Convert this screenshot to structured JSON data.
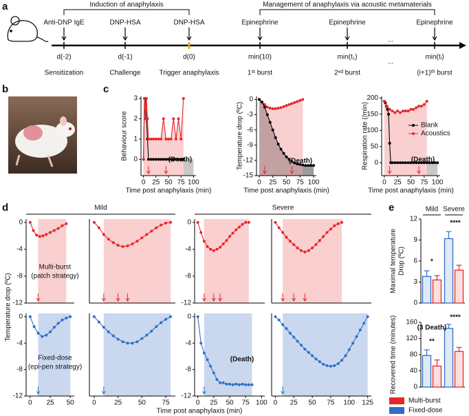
{
  "panel_labels": [
    "a",
    "b",
    "c",
    "d",
    "e"
  ],
  "timeline": {
    "phases": [
      "Induction of anaphylaxis",
      "Management of anaphylaxis via acoustic metamaterials"
    ],
    "events": [
      {
        "agent": "Anti-DNP IgE",
        "time": "d(-2)",
        "label": "Sensitization"
      },
      {
        "agent": "DNP-HSA",
        "time": "d(-1)",
        "label": "Challenge"
      },
      {
        "agent": "DNP-HSA",
        "time": "d(0)",
        "label": "Trigger anaphylaxis"
      },
      {
        "agent": "Epinephrine",
        "time": "min(10)",
        "label": "1ˢᵗ burst"
      },
      {
        "agent": "Epinephrine",
        "time": "min(t₁)",
        "label": "2ⁿᵈ burst"
      },
      {
        "agent": "Epinephrine",
        "time": "min(tᵢ)",
        "label": "(i+1)ᵗʰ burst"
      }
    ],
    "ellipsis": "..."
  },
  "figure_d": {
    "groups": [
      "Mild",
      "Severe"
    ],
    "ylabel": "Temperature drop (ºC)",
    "xlabel": "Time post anaphylaxis (min)",
    "strategies": [
      [
        "Multi-burst",
        "(patch strategy)"
      ],
      [
        "Fixed-dose",
        "(epi-pen strategy)"
      ]
    ],
    "strategy_colors": [
      "#e8262a",
      "#2f6fc4"
    ]
  },
  "chart_data": [
    {
      "type": "line",
      "ylabel": "Behaviour score",
      "xlabel": "Time post anaphylaxis (min)",
      "xlim": [
        -5,
        105
      ],
      "ylim": [
        -0.8,
        3.1
      ],
      "xticks": [
        0,
        25,
        50,
        75,
        100
      ],
      "yticks": [
        0,
        1,
        2,
        3
      ],
      "shades": [
        {
          "x": [
            80,
            100
          ],
          "y": [
            -0.8,
            0
          ],
          "color": "#c8c8c8"
        }
      ],
      "series": [
        {
          "color": "#000000",
          "x": [
            0,
            2,
            4,
            6,
            8,
            10,
            15,
            20,
            25,
            30,
            35,
            40,
            45,
            50,
            55,
            60,
            65,
            70,
            75,
            80
          ],
          "values": [
            0,
            3,
            3,
            2,
            1,
            0,
            0,
            0,
            0,
            0,
            0,
            0,
            0,
            0,
            0,
            0,
            0,
            0,
            0,
            0
          ]
        },
        {
          "color": "#e8262a",
          "area": true,
          "x": [
            0,
            2,
            4,
            6,
            8,
            10,
            15,
            20,
            25,
            30,
            35,
            40,
            45,
            50,
            55,
            60,
            65,
            70,
            75,
            80
          ],
          "values": [
            0,
            3,
            2,
            3,
            2,
            1,
            1,
            1,
            1,
            1,
            1,
            2,
            1,
            1,
            1,
            2,
            1,
            2,
            1,
            3
          ]
        }
      ],
      "arrows": [
        10,
        45
      ],
      "arrow_color": "#e8262a",
      "annotations": [
        "(Death)"
      ]
    },
    {
      "type": "line",
      "ylabel": "Temperature drop (ºC)",
      "xlabel": "Time post anaphylaxis (min)",
      "xlim": [
        -5,
        105
      ],
      "ylim": [
        -15,
        0.6
      ],
      "xticks": [
        0,
        25,
        50,
        75,
        100
      ],
      "yticks": [
        0,
        -3,
        -6,
        -9,
        -12,
        -15
      ],
      "shades": [
        {
          "x": [
            80,
            100
          ],
          "y": [
            -15,
            -13
          ],
          "color": "#c8c8c8"
        }
      ],
      "series": [
        {
          "color": "#e8262a",
          "area": true,
          "x": [
            0,
            5,
            10,
            15,
            20,
            25,
            30,
            35,
            40,
            45,
            50,
            55,
            60,
            65,
            70,
            75,
            80
          ],
          "values": [
            0,
            -0.5,
            -1,
            -1.5,
            -1.7,
            -1.8,
            -1.8,
            -1.7,
            -1.6,
            -1.4,
            -1.2,
            -1,
            -0.8,
            -0.6,
            -0.4,
            -0.2,
            0
          ]
        },
        {
          "color": "#000000",
          "area": true,
          "x": [
            0,
            5,
            10,
            15,
            20,
            25,
            30,
            35,
            40,
            45,
            50,
            55,
            60,
            65,
            70,
            75,
            80,
            85,
            90,
            95,
            100
          ],
          "values": [
            0,
            -0.5,
            -1.5,
            -3,
            -4.5,
            -6,
            -7.5,
            -8.8,
            -9.8,
            -10.6,
            -11.3,
            -11.8,
            -12.2,
            -12.5,
            -12.7,
            -12.8,
            -12.9,
            -13,
            -13,
            -13,
            -13
          ]
        }
      ],
      "arrows": [
        10,
        60
      ],
      "arrow_color": "#e8262a",
      "annotations": [
        "(Death)"
      ]
    },
    {
      "type": "line",
      "ylabel": "Respiration rate (/min)",
      "xlabel": "Time post anaphylaxis (min)",
      "xlim": [
        -5,
        105
      ],
      "ylim": [
        -40,
        205
      ],
      "xticks": [
        0,
        25,
        50,
        75,
        100
      ],
      "yticks": [
        0,
        50,
        100,
        150,
        200
      ],
      "shades": [
        {
          "x": [
            80,
            100
          ],
          "y": [
            -40,
            0
          ],
          "color": "#c8c8c8"
        }
      ],
      "series": [
        {
          "name": "Blank",
          "color": "#000000",
          "x": [
            0,
            2,
            4,
            6,
            8,
            10,
            12,
            15,
            20,
            25,
            30,
            35,
            40,
            45,
            50,
            55,
            60,
            65,
            70,
            75,
            80,
            85,
            90,
            95,
            100
          ],
          "values": [
            190,
            185,
            175,
            165,
            150,
            60,
            0,
            0,
            0,
            0,
            0,
            0,
            0,
            0,
            0,
            0,
            0,
            0,
            0,
            0,
            0,
            0,
            0,
            0,
            0
          ]
        },
        {
          "name": "Acoustics",
          "color": "#e8262a",
          "area": true,
          "x": [
            0,
            5,
            10,
            15,
            20,
            25,
            30,
            35,
            40,
            45,
            50,
            55,
            60,
            65,
            70,
            75,
            80
          ],
          "values": [
            190,
            175,
            165,
            160,
            155,
            160,
            155,
            160,
            160,
            160,
            165,
            165,
            170,
            175,
            175,
            180,
            190
          ]
        }
      ],
      "legend": "upper right",
      "arrows": [
        10,
        65
      ],
      "arrow_color": "#e8262a",
      "annotations": [
        "(Death)"
      ]
    },
    {
      "type": "line",
      "xlim": [
        -5,
        55
      ],
      "ylim": [
        -12,
        0.5
      ],
      "yticks": [
        0,
        -4,
        -8,
        -12
      ],
      "shades": [
        {
          "x": [
            10,
            45
          ],
          "color": "#f9cfcf"
        }
      ],
      "series": [
        {
          "color": "#e8262a",
          "x": [
            0,
            4,
            8,
            12,
            16,
            20,
            25,
            30,
            35,
            40,
            45
          ],
          "values": [
            0,
            -1.2,
            -1.9,
            -2.1,
            -2,
            -1.8,
            -1.5,
            -1.2,
            -0.9,
            -0.5,
            -0.2
          ]
        }
      ],
      "arrows": [
        10
      ],
      "arrow_color": "#e8262a"
    },
    {
      "type": "line",
      "xlim": [
        -5,
        85
      ],
      "ylim": [
        -12,
        0.5
      ],
      "shades": [
        {
          "x": [
            10,
            80
          ],
          "color": "#f9cfcf"
        }
      ],
      "series": [
        {
          "color": "#e8262a",
          "x": [
            0,
            5,
            10,
            15,
            20,
            25,
            30,
            35,
            40,
            45,
            50,
            55,
            60,
            65,
            70,
            75,
            80
          ],
          "values": [
            0,
            -0.8,
            -1.8,
            -2.5,
            -3,
            -3.4,
            -3.6,
            -3.5,
            -3.2,
            -2.8,
            -2.3,
            -1.8,
            -1.3,
            -0.8,
            -0.4,
            -0.1,
            0
          ]
        }
      ],
      "arrows": [
        10,
        25,
        35
      ],
      "arrow_color": "#e8262a"
    },
    {
      "type": "line",
      "xlim": [
        -5,
        105
      ],
      "ylim": [
        -12,
        0.5
      ],
      "yticks": [
        0,
        -4,
        -8,
        -12
      ],
      "shades": [
        {
          "x": [
            10,
            80
          ],
          "color": "#f9cfcf"
        }
      ],
      "series": [
        {
          "color": "#e8262a",
          "x": [
            0,
            5,
            10,
            15,
            20,
            25,
            30,
            35,
            40,
            45,
            50,
            55,
            60,
            65,
            70,
            75,
            80
          ],
          "values": [
            0,
            -1.5,
            -2.8,
            -3.6,
            -4,
            -4.2,
            -4,
            -3.7,
            -3.2,
            -2.7,
            -2.1,
            -1.6,
            -1.1,
            -0.7,
            -0.3,
            0,
            0
          ]
        }
      ],
      "arrows": [
        10,
        25,
        35
      ],
      "arrow_color": "#e8262a"
    },
    {
      "type": "line",
      "xlim": [
        -5,
        130
      ],
      "ylim": [
        -12,
        0.5
      ],
      "shades": [
        {
          "x": [
            10,
            90
          ],
          "color": "#f9cfcf"
        }
      ],
      "series": [
        {
          "color": "#e8262a",
          "x": [
            0,
            5,
            10,
            15,
            20,
            25,
            30,
            35,
            40,
            45,
            50,
            55,
            60,
            65,
            70,
            75,
            80,
            85,
            90
          ],
          "values": [
            0,
            -0.8,
            -1.5,
            -2.2,
            -2.8,
            -3.3,
            -3.8,
            -4.2,
            -4.4,
            -4.2,
            -3.8,
            -3.3,
            -2.7,
            -2.1,
            -1.5,
            -1,
            -0.5,
            -0.2,
            0
          ]
        }
      ],
      "arrows": [
        10,
        25,
        40
      ],
      "arrow_color": "#e8262a"
    },
    {
      "type": "line",
      "xlim": [
        -5,
        55
      ],
      "ylim": [
        -12,
        0.5
      ],
      "xticks": [
        0,
        25,
        50
      ],
      "yticks": [
        0,
        -4,
        -8,
        -12
      ],
      "shades": [
        {
          "x": [
            10,
            50
          ],
          "color": "#c9d8ef"
        }
      ],
      "series": [
        {
          "color": "#2f6fc4",
          "x": [
            0,
            5,
            10,
            15,
            20,
            25,
            30,
            35,
            40,
            45,
            50
          ],
          "values": [
            0,
            -1.5,
            -2.5,
            -3,
            -2.8,
            -2.3,
            -1.6,
            -1,
            -0.5,
            -0.2,
            0
          ]
        }
      ],
      "arrows": [
        10
      ],
      "arrow_color": "#2f6fc4"
    },
    {
      "type": "line",
      "xlim": [
        -5,
        85
      ],
      "ylim": [
        -12,
        0.5
      ],
      "xticks": [
        0,
        25,
        50,
        75
      ],
      "shades": [
        {
          "x": [
            10,
            80
          ],
          "color": "#c9d8ef"
        }
      ],
      "series": [
        {
          "color": "#2f6fc4",
          "x": [
            0,
            5,
            10,
            15,
            20,
            25,
            30,
            35,
            40,
            45,
            50,
            55,
            60,
            65,
            70,
            75,
            80
          ],
          "values": [
            0,
            -0.8,
            -1.6,
            -2.3,
            -2.9,
            -3.4,
            -3.8,
            -4,
            -4,
            -3.8,
            -3.3,
            -2.8,
            -2.2,
            -1.5,
            -0.9,
            -0.4,
            0
          ]
        }
      ],
      "arrows": [
        10
      ],
      "arrow_color": "#2f6fc4"
    },
    {
      "type": "line",
      "xlim": [
        -5,
        105
      ],
      "ylim": [
        -12,
        0.5
      ],
      "xticks": [
        0,
        25,
        50,
        75,
        100
      ],
      "yticks": [
        0,
        -4,
        -8,
        -12
      ],
      "shades": [
        {
          "x": [
            10,
            85
          ],
          "color": "#c9d8ef"
        }
      ],
      "series": [
        {
          "color": "#2f6fc4",
          "x": [
            0,
            5,
            10,
            15,
            20,
            25,
            30,
            35,
            40,
            45,
            50,
            55,
            60,
            65,
            70,
            75,
            80,
            85
          ],
          "values": [
            0,
            -4,
            -5.5,
            -6.5,
            -7.5,
            -8.5,
            -9.5,
            -10,
            -10,
            -10.2,
            -10.2,
            -10.3,
            -10.2,
            -10.3,
            -10.2,
            -10.3,
            -10.3,
            -10.3
          ]
        }
      ],
      "arrows": [
        10
      ],
      "arrow_color": "#2f6fc4",
      "annotations": [
        "(Death)"
      ]
    },
    {
      "type": "line",
      "xlim": [
        -5,
        130
      ],
      "ylim": [
        -12,
        0.5
      ],
      "xticks": [
        0,
        25,
        50,
        75,
        100,
        125
      ],
      "shades": [
        {
          "x": [
            10,
            125
          ],
          "color": "#c9d8ef"
        }
      ],
      "series": [
        {
          "color": "#2f6fc4",
          "x": [
            0,
            5,
            10,
            15,
            20,
            25,
            30,
            35,
            40,
            45,
            50,
            55,
            60,
            65,
            70,
            75,
            80,
            85,
            90,
            95,
            100,
            105,
            110,
            115,
            120,
            125
          ],
          "values": [
            0,
            -0.5,
            -1.2,
            -1.8,
            -2.5,
            -3.1,
            -3.7,
            -4.3,
            -4.9,
            -5.4,
            -5.9,
            -6.4,
            -6.8,
            -7.2,
            -7.4,
            -7.5,
            -7.4,
            -7.1,
            -6.6,
            -5.9,
            -5,
            -4,
            -3,
            -2,
            -1,
            0
          ]
        }
      ],
      "arrows": [
        10
      ],
      "arrow_color": "#2f6fc4"
    },
    {
      "type": "bar",
      "categories": [
        "Mild",
        "Severe"
      ],
      "ylabel": [
        "Maximal temperature",
        "Drop (ºC)"
      ],
      "ylim": [
        0,
        12
      ],
      "yticks": [
        0,
        3,
        6,
        9,
        12
      ],
      "series": [
        {
          "color": "#2f6fc4",
          "values": [
            3.8,
            9.2
          ],
          "errors": [
            0.8,
            1.0
          ]
        },
        {
          "color": "#e8262a",
          "values": [
            3.3,
            4.7
          ],
          "errors": [
            0.6,
            0.7
          ]
        }
      ],
      "annotations": [
        "*",
        "****"
      ]
    },
    {
      "type": "bar",
      "ylabel": "Recovered time (minutes)",
      "ylim": [
        0,
        160
      ],
      "yticks": [
        0,
        40,
        80,
        120,
        160
      ],
      "series": [
        {
          "name": "Fixed-dose",
          "color": "#2f6fc4",
          "values": [
            78,
            145
          ],
          "errors": [
            14,
            10
          ]
        },
        {
          "name": "Multi-burst",
          "color": "#e8262a",
          "values": [
            52,
            88
          ],
          "errors": [
            15,
            10
          ]
        }
      ],
      "legend": "below",
      "annotations": [
        "**",
        "****",
        "(3 Death)"
      ]
    }
  ]
}
